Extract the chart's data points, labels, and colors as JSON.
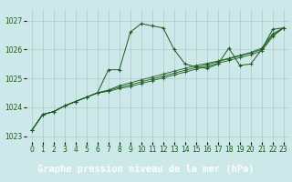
{
  "title": "Graphe pression niveau de la mer (hPa)",
  "bg_color": "#cce8e8",
  "title_bg": "#2d6b2d",
  "title_fg": "#ffffff",
  "grid_color": "#b0c8c8",
  "line_color": "#1a5c1a",
  "ylim": [
    1022.8,
    1027.4
  ],
  "xlim": [
    -0.5,
    23.5
  ],
  "yticks": [
    1023,
    1024,
    1025,
    1026,
    1027
  ],
  "xticks": [
    0,
    1,
    2,
    3,
    4,
    5,
    6,
    7,
    8,
    9,
    10,
    11,
    12,
    13,
    14,
    15,
    16,
    17,
    18,
    19,
    20,
    21,
    22,
    23
  ],
  "series": [
    [
      1023.2,
      1023.75,
      1023.85,
      1024.05,
      1024.2,
      1024.35,
      1024.5,
      1025.3,
      1025.3,
      1026.6,
      1026.9,
      1026.82,
      1026.75,
      1026.0,
      1025.5,
      1025.4,
      1025.35,
      1025.5,
      1026.05,
      1025.45,
      1025.5,
      1026.0,
      1026.7,
      1026.75
    ],
    [
      1023.2,
      1023.75,
      1023.85,
      1024.05,
      1024.2,
      1024.35,
      1024.5,
      1024.6,
      1024.75,
      1024.85,
      1024.95,
      1025.05,
      1025.15,
      1025.25,
      1025.35,
      1025.45,
      1025.52,
      1025.6,
      1025.7,
      1025.8,
      1025.9,
      1026.05,
      1026.55,
      1026.75
    ],
    [
      1023.2,
      1023.75,
      1023.85,
      1024.05,
      1024.2,
      1024.35,
      1024.5,
      1024.58,
      1024.7,
      1024.78,
      1024.88,
      1024.98,
      1025.08,
      1025.18,
      1025.28,
      1025.38,
      1025.48,
      1025.58,
      1025.68,
      1025.78,
      1025.88,
      1026.0,
      1026.5,
      1026.75
    ],
    [
      1023.2,
      1023.75,
      1023.85,
      1024.05,
      1024.2,
      1024.35,
      1024.5,
      1024.55,
      1024.65,
      1024.72,
      1024.82,
      1024.92,
      1025.02,
      1025.12,
      1025.22,
      1025.32,
      1025.42,
      1025.52,
      1025.62,
      1025.72,
      1025.82,
      1025.95,
      1026.45,
      1026.75
    ]
  ],
  "tick_fontsize": 5.5,
  "title_fontsize": 7.5
}
